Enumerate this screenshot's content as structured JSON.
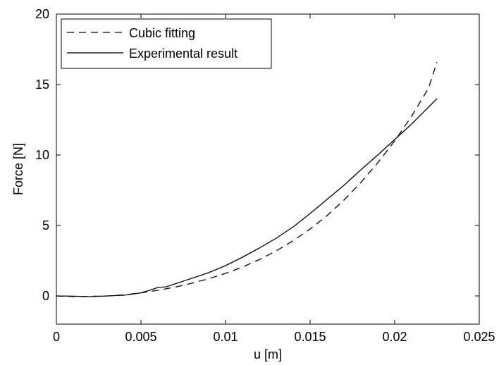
{
  "chart_data": {
    "type": "line",
    "title": "",
    "xlabel": "u [m]",
    "ylabel": "Force [N]",
    "xlim": [
      0,
      0.025
    ],
    "ylim": [
      -2,
      20
    ],
    "x_ticks": [
      0,
      0.005,
      0.01,
      0.015,
      0.02,
      0.025
    ],
    "x_tick_labels": [
      "0",
      "0.005",
      "0.01",
      "0.015",
      "0.02",
      "0.025"
    ],
    "y_ticks": [
      0,
      5,
      10,
      15,
      20
    ],
    "y_tick_labels": [
      "0",
      "5",
      "10",
      "15",
      "20"
    ],
    "grid": false,
    "legend_position": "top-left",
    "series": [
      {
        "name": "Cubic fitting",
        "style": "dashed",
        "color": "#000000",
        "x": [
          0,
          0.001,
          0.002,
          0.003,
          0.004,
          0.005,
          0.006,
          0.007,
          0.008,
          0.009,
          0.01,
          0.011,
          0.012,
          0.013,
          0.014,
          0.015,
          0.016,
          0.017,
          0.018,
          0.019,
          0.02,
          0.021,
          0.022,
          0.0225
        ],
        "y": [
          0,
          -0.04,
          -0.03,
          0.0,
          0.08,
          0.22,
          0.4,
          0.62,
          0.9,
          1.22,
          1.6,
          2.05,
          2.58,
          3.2,
          3.92,
          4.75,
          5.7,
          6.8,
          8.05,
          9.45,
          11.0,
          12.75,
          14.75,
          16.6
        ]
      },
      {
        "name": "Experimental result",
        "style": "solid",
        "color": "#000000",
        "x": [
          0,
          0.001,
          0.002,
          0.003,
          0.004,
          0.005,
          0.0055,
          0.006,
          0.0065,
          0.007,
          0.008,
          0.009,
          0.01,
          0.011,
          0.012,
          0.013,
          0.014,
          0.015,
          0.016,
          0.017,
          0.018,
          0.019,
          0.02,
          0.021,
          0.022,
          0.0225
        ],
        "y": [
          0,
          -0.02,
          -0.05,
          0.0,
          0.05,
          0.22,
          0.4,
          0.6,
          0.65,
          0.85,
          1.25,
          1.65,
          2.15,
          2.75,
          3.4,
          4.1,
          4.9,
          5.85,
          6.85,
          7.85,
          8.95,
          10.0,
          11.1,
          12.2,
          13.4,
          14.0
        ]
      }
    ]
  }
}
